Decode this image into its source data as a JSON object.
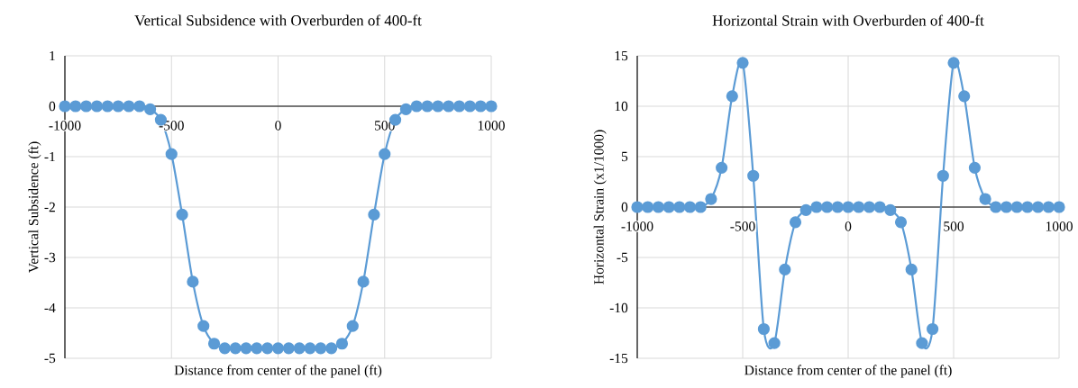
{
  "chart_data": [
    {
      "type": "line",
      "title": "Vertical Subsidence with Overburden of 400-ft",
      "xlabel": "Distance from center of the panel (ft)",
      "ylabel": "Vertical Subsidence (ft)",
      "x": [
        -1000,
        -950,
        -900,
        -850,
        -800,
        -750,
        -700,
        -650,
        -600,
        -550,
        -500,
        -450,
        -400,
        -350,
        -300,
        -250,
        -200,
        -150,
        -100,
        -50,
        0,
        50,
        100,
        150,
        200,
        250,
        300,
        350,
        400,
        450,
        500,
        550,
        600,
        650,
        700,
        750,
        800,
        850,
        900,
        950,
        1000
      ],
      "series": [
        {
          "color": "#5b9bd5",
          "values": [
            0,
            0,
            0,
            0,
            0,
            0,
            0,
            0,
            -0.06,
            -0.27,
            -0.95,
            -2.15,
            -3.48,
            -4.36,
            -4.71,
            -4.8,
            -4.8,
            -4.8,
            -4.8,
            -4.8,
            -4.8,
            -4.8,
            -4.8,
            -4.8,
            -4.8,
            -4.8,
            -4.71,
            -4.36,
            -3.48,
            -2.15,
            -0.95,
            -0.27,
            -0.06,
            0,
            0,
            0,
            0,
            0,
            0,
            0,
            0
          ]
        }
      ],
      "xlim": [
        -1000,
        1000
      ],
      "xticks": [
        -1000,
        -500,
        0,
        500,
        1000
      ],
      "ylim": [
        -5,
        1
      ],
      "yticks": [
        -5,
        -4,
        -3,
        -2,
        -1,
        0,
        1
      ],
      "grid": true,
      "marker": "circle",
      "line_style": "solid"
    },
    {
      "type": "line",
      "title": "Horizontal Strain with Overburden of 400-ft",
      "xlabel": "Distance from center of the panel (ft)",
      "ylabel": "Horizontal Strain (x1/1000)",
      "x": [
        -1000,
        -950,
        -900,
        -850,
        -800,
        -750,
        -700,
        -650,
        -600,
        -550,
        -500,
        -450,
        -400,
        -350,
        -300,
        -250,
        -200,
        -150,
        -100,
        -50,
        0,
        50,
        100,
        150,
        200,
        250,
        300,
        350,
        400,
        450,
        500,
        550,
        600,
        650,
        700,
        750,
        800,
        850,
        900,
        950,
        1000
      ],
      "series": [
        {
          "color": "#5b9bd5",
          "values": [
            0,
            0,
            0,
            0,
            0,
            0,
            0,
            0.8,
            3.9,
            11.0,
            14.3,
            3.1,
            -12.1,
            -13.5,
            -6.2,
            -1.5,
            -0.3,
            0,
            0,
            0,
            0,
            0,
            0,
            0,
            -0.3,
            -1.5,
            -6.2,
            -13.5,
            -12.1,
            3.1,
            14.3,
            11.0,
            3.9,
            0.8,
            0,
            0,
            0,
            0,
            0,
            0,
            0
          ]
        }
      ],
      "xlim": [
        -1000,
        1000
      ],
      "xticks": [
        -1000,
        -500,
        0,
        500,
        1000
      ],
      "ylim": [
        -15,
        15
      ],
      "yticks": [
        -15,
        -10,
        -5,
        0,
        5,
        10,
        15
      ],
      "grid": true,
      "marker": "circle",
      "line_style": "solid"
    }
  ]
}
